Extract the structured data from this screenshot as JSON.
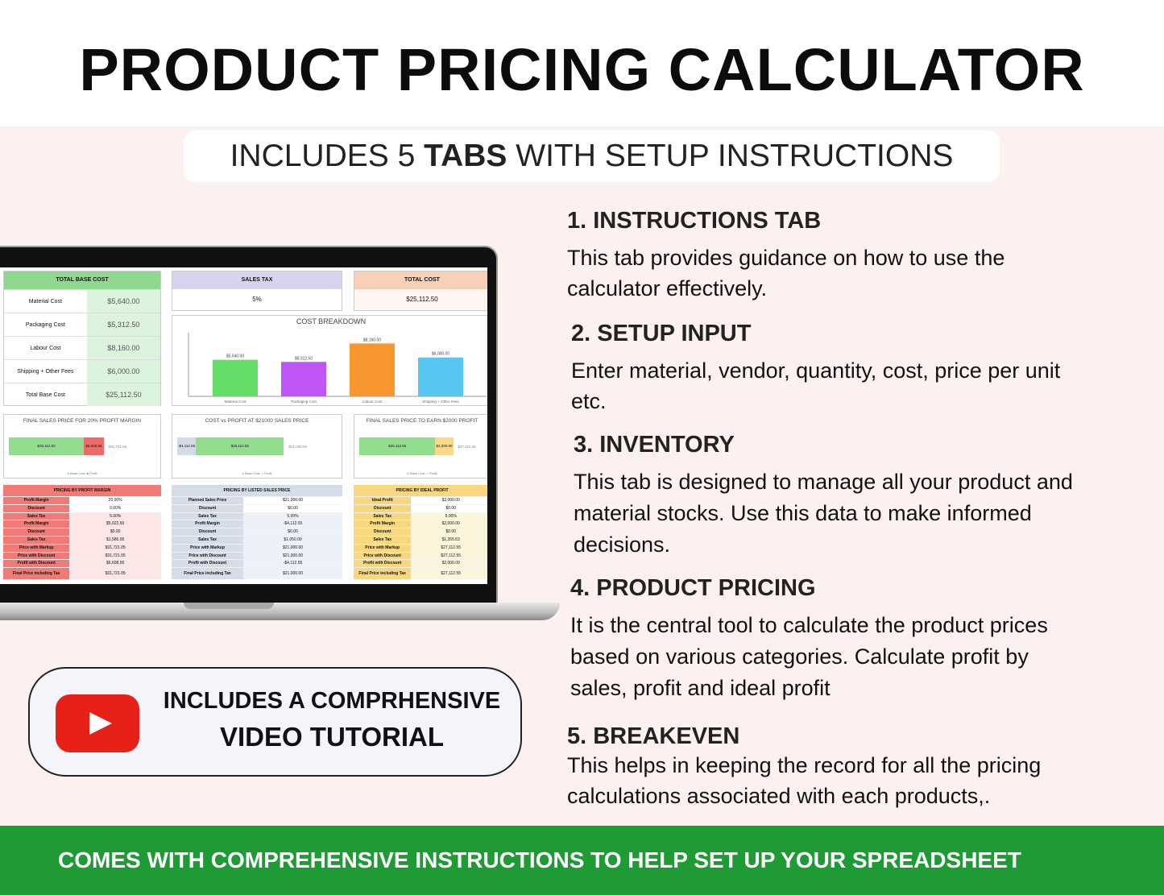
{
  "title": "PRODUCT PRICING CALCULATOR",
  "subtitle": {
    "pre": "INCLUDES 5 ",
    "bold": "TABS",
    "post": " WITH SETUP INSTRUCTIONS"
  },
  "spreadsheet": {
    "base_cost": {
      "header": "TOTAL BASE COST",
      "rows": [
        [
          "Material Cost",
          "$5,640.00"
        ],
        [
          "Packaging Cost",
          "$5,312.50"
        ],
        [
          "Labour Cost",
          "$8,160.00"
        ],
        [
          "Shipping + Other Fees",
          "$6,000.00"
        ],
        [
          "Total Base Cost",
          "$25,112.50"
        ]
      ]
    },
    "sales_tax": {
      "header": "SALES TAX",
      "value": "5%"
    },
    "total_cost": {
      "header": "TOTAL COST",
      "value": "$25,112.50"
    },
    "cost_chart": {
      "title": "COST BREAKDOWN",
      "type": "bar",
      "categories": [
        "Material Cost",
        "Packaging Cost",
        "Labour Cost",
        "Shipping + Other Fees"
      ],
      "values": [
        5640,
        5312.5,
        8160,
        6000
      ],
      "labels": [
        "$5,640.00",
        "$5,312.50",
        "$8,160.00",
        "$6,000.00"
      ],
      "colors": [
        "#66dd66",
        "#bf55f5",
        "#f7962e",
        "#57c6f0"
      ]
    },
    "mini_charts": [
      {
        "title": "FINAL SALES PRICE FOR 20% PROFIT MARGIN",
        "base": "$25,112.50",
        "profit": "$6,608.55",
        "total": "$31,721.05",
        "base_value": 25112.5,
        "profit_value": 6608.55,
        "profit_color": "#ef6b6b",
        "legend": [
          "Base Cost",
          "Profit"
        ]
      },
      {
        "title": "COST vs PROFIT AT $21000 SALES PRICE",
        "base": "$25,112.55",
        "profit": "-$4,112.55",
        "total": "$21,000.00",
        "base_value": 25112.55,
        "profit_value": -4112.55,
        "profit_color": "#d5dbe6",
        "legend": [
          "Base Cost",
          "Profit"
        ]
      },
      {
        "title": "FINAL SALES PRICE TO EARN $2000 PROFIT",
        "base": "$25,112.55",
        "profit": "$2,000.00",
        "total": "$27,112.55",
        "base_value": 25112.55,
        "profit_value": 2000,
        "profit_color": "#f8d98a",
        "legend": [
          "Base Cost",
          "Profit"
        ]
      }
    ],
    "pricing": [
      {
        "header": "PRICING  BY PROFIT MARGIN",
        "color": "#f27a76",
        "light": "#fde6e5",
        "rows": [
          [
            "Profit Margin",
            "20.00%"
          ],
          [
            "Discount",
            "0.00%"
          ],
          [
            "Sales Tax",
            "5.00%"
          ],
          [
            "Profit Margin",
            "$5,022.50"
          ],
          [
            "Discount",
            "$0.00"
          ],
          [
            "Sales Tax",
            "$1,586.05"
          ],
          [
            "Price with Markup",
            "$31,721.05"
          ],
          [
            "Price with Discount",
            "$31,721.05"
          ],
          [
            "Profit with Discount",
            "$6,608.55"
          ],
          [
            "Final Price including Tax",
            "$31,721.05"
          ]
        ]
      },
      {
        "header": "PRICING BY LISTED SALES PRICE",
        "color": "#d6dde8",
        "light": "#edf2fa",
        "rows": [
          [
            "Planned Sales Price",
            "$21,000.00"
          ],
          [
            "Discount",
            "$0.00"
          ],
          [
            "Sales Tax",
            "5.00%"
          ],
          [
            "Profit Margin",
            "-$4,112.55"
          ],
          [
            "Discount",
            "$0.00"
          ],
          [
            "Sales Tax",
            "$1,050.00"
          ],
          [
            "Price with Markup",
            "$21,000.00"
          ],
          [
            "Price with Discount",
            "$21,000.00"
          ],
          [
            "Profit with Discount",
            "-$4,112.55"
          ],
          [
            "Final Price including Tax",
            "$21,000.00"
          ]
        ]
      },
      {
        "header": "PRICING BY IDEAL PROFIT",
        "color": "#f9d77e",
        "light": "#fdf4dc",
        "rows": [
          [
            "Ideal Profit",
            "$2,000.00"
          ],
          [
            "Discount",
            "$0.00"
          ],
          [
            "Sales Tax",
            "5.00%"
          ],
          [
            "Profit Margin",
            "$2,000.00"
          ],
          [
            "Discount",
            "$0.00"
          ],
          [
            "Sales Tax",
            "$1,355.63"
          ],
          [
            "Price with Markup",
            "$27,112.55"
          ],
          [
            "Price with Discount",
            "$27,112.55"
          ],
          [
            "Profit with Discount",
            "$2,000.00"
          ],
          [
            "Final Price including Tax",
            "$27,112.55"
          ]
        ]
      }
    ]
  },
  "video": {
    "line1": "INCLUDES A COMPRHENSIVE",
    "line2": "VIDEO TUTORIAL",
    "icon": "youtube-play-icon",
    "color": "#e62117"
  },
  "sections": [
    {
      "heading": "1. INSTRUCTIONS TAB",
      "body": "This tab provides guidance on how to use the calculator effectively."
    },
    {
      "heading": "2. SETUP INPUT",
      "body": "Enter material, vendor, quantity, cost, price per unit etc."
    },
    {
      "heading": "3. INVENTORY",
      "body": "This tab is designed to manage all your product and material stocks. Use this data to make informed decisions."
    },
    {
      "heading": "4. PRODUCT PRICING",
      "body": "It is the central tool to calculate the product prices based on various categories. Calculate profit by sales, profit and ideal profit"
    },
    {
      "heading": "5. BREAKEVEN",
      "body": "This helps in keeping the record for all the pricing calculations associated with each products,."
    }
  ],
  "footer": "COMES WITH COMPREHENSIVE INSTRUCTIONS TO HELP SET UP YOUR SPREADSHEET",
  "colors": {
    "background": "#fdf1f0",
    "footer": "#1f9b36"
  }
}
